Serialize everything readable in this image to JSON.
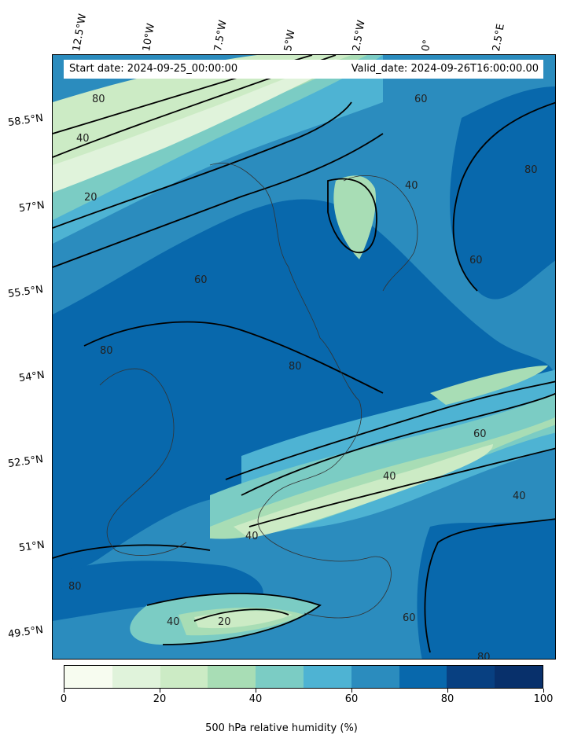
{
  "header": {
    "start_date": "Start date: 2024-09-25_00:00:00",
    "valid_date": "Valid_date: 2024-09-26T16:00:00.00"
  },
  "lon_labels": [
    "12.5°W",
    "10°W",
    "7.5°W",
    "5°W",
    "2.5°W",
    "0°",
    "2.5°E"
  ],
  "lat_labels": [
    "58.5°N",
    "57°N",
    "55.5°N",
    "54°N",
    "52.5°N",
    "51°N",
    "49.5°N"
  ],
  "colorbar": {
    "label": "500 hPa relative humidity (%)",
    "ticks": [
      "0",
      "20",
      "40",
      "60",
      "80",
      "100"
    ],
    "colors": [
      "#f7fcf0",
      "#e0f3db",
      "#ccebc5",
      "#a8ddb5",
      "#7bccc4",
      "#4eb3d3",
      "#2b8cbe",
      "#0868ac",
      "#084081",
      "#08306b"
    ]
  },
  "contour_labels": [
    "20",
    "40",
    "60",
    "80"
  ]
}
